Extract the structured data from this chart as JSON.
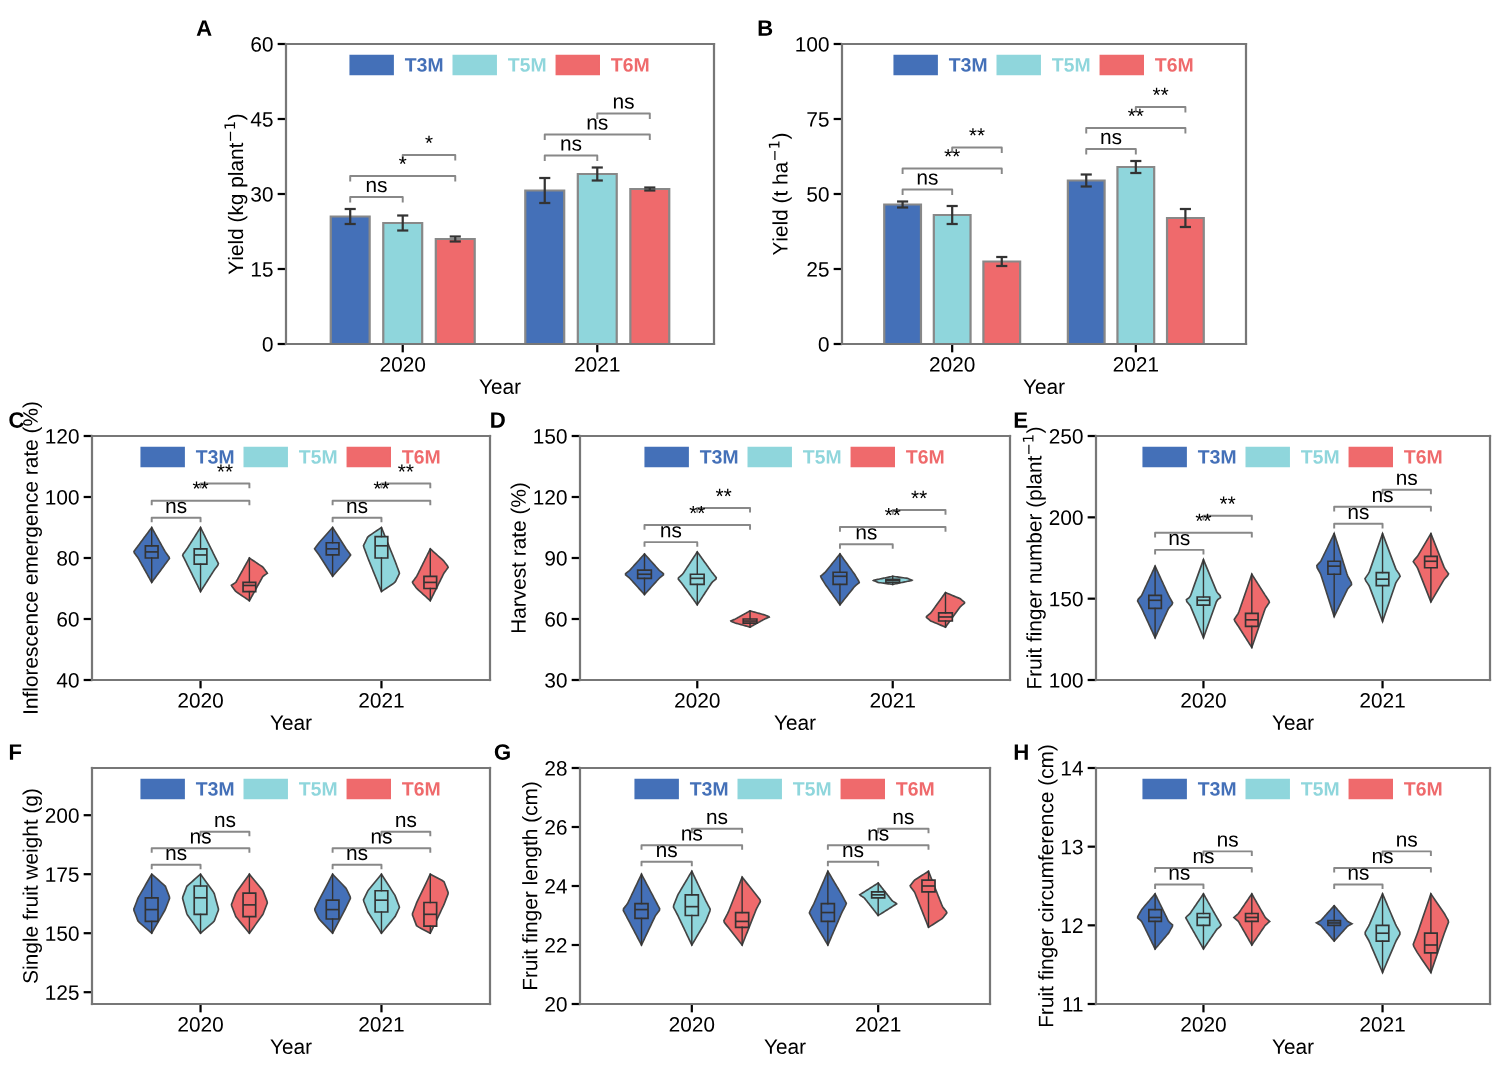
{
  "chart_data": [
    {
      "type": "bar",
      "title": "A",
      "xlabel": "Year",
      "ylabel": "Yield (kg plant$^{−1}$)",
      "categories": [
        "2020",
        "2021"
      ],
      "series": [
        {
          "name": "T3M",
          "color": "#4470b8",
          "values": [
            25.5,
            30.7
          ],
          "errors": [
            1.5,
            2.5
          ]
        },
        {
          "name": "T5M",
          "color": "#8fd6dc",
          "values": [
            24.2,
            34
          ],
          "errors": [
            1.5,
            1.3
          ]
        },
        {
          "name": "T6M",
          "color": "#ef6a6c",
          "values": [
            21,
            31
          ],
          "errors": [
            0.5,
            0.3
          ]
        }
      ],
      "ylim": [
        0,
        60
      ],
      "yticks": [
        0,
        15,
        30,
        45,
        60
      ],
      "legend": "top",
      "grid": false,
      "annotations": [
        "ns",
        "*",
        "*",
        "ns",
        "ns",
        "ns"
      ]
    },
    {
      "type": "bar",
      "title": "B",
      "xlabel": "Year",
      "ylabel": "Yield (t ha$^{−1}$)",
      "categories": [
        "2020",
        "2021"
      ],
      "series": [
        {
          "name": "T3M",
          "color": "#4470b8",
          "values": [
            46.5,
            54.5
          ],
          "errors": [
            1,
            2
          ]
        },
        {
          "name": "T5M",
          "color": "#8fd6dc",
          "values": [
            43,
            59
          ],
          "errors": [
            3,
            2
          ]
        },
        {
          "name": "T6M",
          "color": "#ef6a6c",
          "values": [
            27.5,
            42
          ],
          "errors": [
            1.5,
            3
          ]
        }
      ],
      "ylim": [
        0,
        100
      ],
      "yticks": [
        0,
        25,
        50,
        75,
        100
      ],
      "legend": "top",
      "grid": false,
      "annotations": [
        "ns",
        "**",
        "**",
        "ns",
        "**",
        "**"
      ]
    },
    {
      "type": "box",
      "title": "C",
      "xlabel": "Year",
      "ylabel": "Inflorescence emergence rate (%)",
      "categories": [
        "2020",
        "2021"
      ],
      "series": [
        {
          "name": "T3M",
          "color": "#4470b8",
          "boxes": [
            {
              "low": 72,
              "q1": 80,
              "median": 82,
              "q3": 84,
              "high": 90
            },
            {
              "low": 74,
              "q1": 81,
              "median": 83,
              "q3": 85,
              "high": 90
            }
          ]
        },
        {
          "name": "T5M",
          "color": "#8fd6dc",
          "boxes": [
            {
              "low": 69,
              "q1": 78,
              "median": 81,
              "q3": 83,
              "high": 90
            },
            {
              "low": 69,
              "q1": 80,
              "median": 84,
              "q3": 87,
              "high": 90
            }
          ]
        },
        {
          "name": "T6M",
          "color": "#ef6a6c",
          "boxes": [
            {
              "low": 66,
              "q1": 69,
              "median": 71,
              "q3": 72,
              "high": 80
            },
            {
              "low": 66,
              "q1": 70,
              "median": 72,
              "q3": 74,
              "high": 83
            }
          ]
        }
      ],
      "ylim": [
        40,
        120
      ],
      "yticks": [
        40,
        60,
        80,
        100,
        120
      ],
      "legend": "top",
      "grid": false,
      "annotations": [
        "ns",
        "**",
        "**",
        "ns",
        "**",
        "**"
      ]
    },
    {
      "type": "box",
      "title": "D",
      "xlabel": "Year",
      "ylabel": "Harvest rate (%)",
      "categories": [
        "2020",
        "2021"
      ],
      "series": [
        {
          "name": "T3M",
          "color": "#4470b8",
          "boxes": [
            {
              "low": 72,
              "q1": 80,
              "median": 82,
              "q3": 84,
              "high": 92
            },
            {
              "low": 67,
              "q1": 77,
              "median": 81,
              "q3": 83,
              "high": 92
            }
          ]
        },
        {
          "name": "T5M",
          "color": "#8fd6dc",
          "boxes": [
            {
              "low": 67,
              "q1": 77,
              "median": 80,
              "q3": 82,
              "high": 93
            },
            {
              "low": 77,
              "q1": 78,
              "median": 79,
              "q3": 79.5,
              "high": 81
            }
          ]
        },
        {
          "name": "T6M",
          "color": "#ef6a6c",
          "boxes": [
            {
              "low": 56,
              "q1": 58,
              "median": 59,
              "q3": 60,
              "high": 64
            },
            {
              "low": 56,
              "q1": 59,
              "median": 61,
              "q3": 63,
              "high": 73
            }
          ]
        }
      ],
      "ylim": [
        30,
        150
      ],
      "yticks": [
        30,
        60,
        90,
        120,
        150
      ],
      "legend": "top",
      "grid": false,
      "annotations": [
        "ns",
        "**",
        "**",
        "ns",
        "**",
        "**"
      ]
    },
    {
      "type": "box",
      "title": "E",
      "xlabel": "Year",
      "ylabel": "Fruit finger number (plant$^{−1}$)",
      "categories": [
        "2020",
        "2021"
      ],
      "series": [
        {
          "name": "T3M",
          "color": "#4470b8",
          "boxes": [
            {
              "low": 126,
              "q1": 144,
              "median": 149,
              "q3": 152,
              "high": 170
            },
            {
              "low": 139,
              "q1": 165,
              "median": 170,
              "q3": 173,
              "high": 190
            }
          ]
        },
        {
          "name": "T5M",
          "color": "#8fd6dc",
          "boxes": [
            {
              "low": 126,
              "q1": 146,
              "median": 149,
              "q3": 151,
              "high": 174
            },
            {
              "low": 136,
              "q1": 158,
              "median": 162,
              "q3": 166,
              "high": 190
            }
          ]
        },
        {
          "name": "T6M",
          "color": "#ef6a6c",
          "boxes": [
            {
              "low": 120,
              "q1": 133,
              "median": 137,
              "q3": 141,
              "high": 165
            },
            {
              "low": 148,
              "q1": 169,
              "median": 173,
              "q3": 176,
              "high": 190
            }
          ]
        }
      ],
      "ylim": [
        100,
        250
      ],
      "yticks": [
        100,
        150,
        200,
        250
      ],
      "legend": "top",
      "grid": false,
      "annotations": [
        "ns",
        "**",
        "**",
        "ns",
        "ns",
        "ns"
      ]
    },
    {
      "type": "box",
      "title": "F",
      "xlabel": "Year",
      "ylabel": "Single fruit weight (g)",
      "categories": [
        "2020",
        "2021"
      ],
      "series": [
        {
          "name": "T3M",
          "color": "#4470b8",
          "boxes": [
            {
              "low": 150,
              "q1": 155,
              "median": 160,
              "q3": 165,
              "high": 175
            },
            {
              "low": 150,
              "q1": 156,
              "median": 160,
              "q3": 164,
              "high": 175
            }
          ]
        },
        {
          "name": "T5M",
          "color": "#8fd6dc",
          "boxes": [
            {
              "low": 150,
              "q1": 158,
              "median": 165,
              "q3": 170,
              "high": 175
            },
            {
              "low": 150,
              "q1": 159,
              "median": 164,
              "q3": 168,
              "high": 175
            }
          ]
        },
        {
          "name": "T6M",
          "color": "#ef6a6c",
          "boxes": [
            {
              "low": 150,
              "q1": 157,
              "median": 162,
              "q3": 167,
              "high": 175
            },
            {
              "low": 150,
              "q1": 153,
              "median": 158,
              "q3": 163,
              "high": 175
            }
          ]
        }
      ],
      "ylim": [
        120,
        220
      ],
      "yticks": [
        125,
        150,
        175,
        200
      ],
      "legend": "top",
      "grid": false,
      "annotations": [
        "ns",
        "ns",
        "ns",
        "ns",
        "ns",
        "ns"
      ]
    },
    {
      "type": "box",
      "title": "G",
      "xlabel": "Year",
      "ylabel": "Fruit finger length (cm)",
      "categories": [
        "2020",
        "2021"
      ],
      "series": [
        {
          "name": "T3M",
          "color": "#4470b8",
          "boxes": [
            {
              "low": 22,
              "q1": 22.9,
              "median": 23.2,
              "q3": 23.4,
              "high": 24.4
            },
            {
              "low": 22,
              "q1": 22.8,
              "median": 23.1,
              "q3": 23.4,
              "high": 24.5
            }
          ]
        },
        {
          "name": "T5M",
          "color": "#8fd6dc",
          "boxes": [
            {
              "low": 22,
              "q1": 23,
              "median": 23.3,
              "q3": 23.7,
              "high": 24.5
            },
            {
              "low": 23,
              "q1": 23.6,
              "median": 23.7,
              "q3": 23.8,
              "high": 24.1
            }
          ]
        },
        {
          "name": "T6M",
          "color": "#ef6a6c",
          "boxes": [
            {
              "low": 22,
              "q1": 22.6,
              "median": 22.8,
              "q3": 23.1,
              "high": 24.3
            },
            {
              "low": 22.6,
              "q1": 23.8,
              "median": 24,
              "q3": 24.2,
              "high": 24.5
            }
          ]
        }
      ],
      "ylim": [
        20,
        28
      ],
      "yticks": [
        20,
        22,
        24,
        26,
        28
      ],
      "legend": "top",
      "grid": false,
      "annotations": [
        "ns",
        "ns",
        "ns",
        "ns",
        "ns",
        "ns"
      ]
    },
    {
      "type": "box",
      "title": "H",
      "xlabel": "Year",
      "ylabel": "Fruit finger circumference (cm)",
      "categories": [
        "2020",
        "2021"
      ],
      "series": [
        {
          "name": "T3M",
          "color": "#4470b8",
          "boxes": [
            {
              "low": 11.7,
              "q1": 12.05,
              "median": 12.1,
              "q3": 12.2,
              "high": 12.4
            },
            {
              "low": 11.8,
              "q1": 12,
              "median": 12.03,
              "q3": 12.06,
              "high": 12.25
            }
          ]
        },
        {
          "name": "T5M",
          "color": "#8fd6dc",
          "boxes": [
            {
              "low": 11.7,
              "q1": 12,
              "median": 12.1,
              "q3": 12.15,
              "high": 12.4
            },
            {
              "low": 11.4,
              "q1": 11.8,
              "median": 11.9,
              "q3": 12,
              "high": 12.4
            }
          ]
        },
        {
          "name": "T6M",
          "color": "#ef6a6c",
          "boxes": [
            {
              "low": 11.75,
              "q1": 12.05,
              "median": 12.1,
              "q3": 12.15,
              "high": 12.4
            },
            {
              "low": 11.4,
              "q1": 11.65,
              "median": 11.75,
              "q3": 11.9,
              "high": 12.4
            }
          ]
        }
      ],
      "ylim": [
        11,
        14
      ],
      "yticks": [
        11,
        12,
        13,
        14
      ],
      "legend": "top",
      "grid": false,
      "annotations": [
        "ns",
        "ns",
        "ns",
        "ns",
        "ns",
        "ns"
      ]
    }
  ]
}
